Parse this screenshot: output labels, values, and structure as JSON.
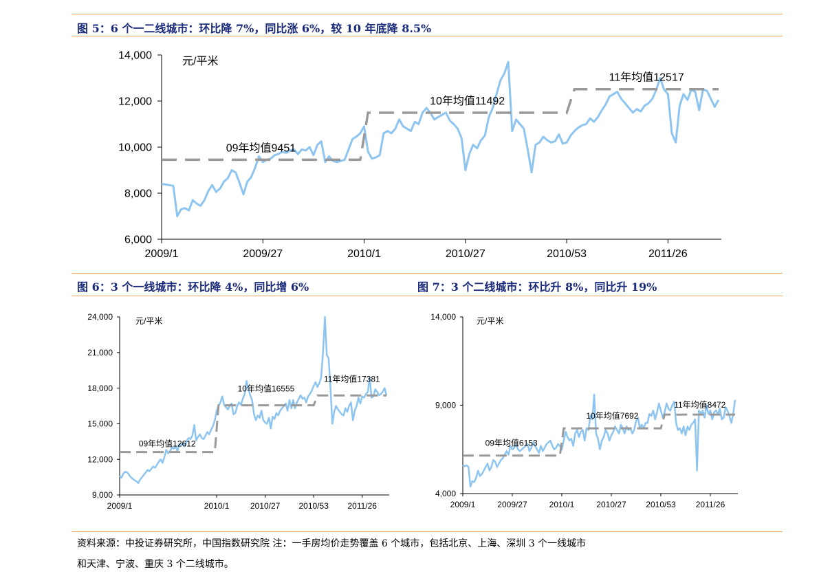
{
  "figures": {
    "fig5_title": "图 5：6 个一二线城市：环比降 7%，同比涨 6%，较 10 年底降 8.5%",
    "fig6_title": "图 6：3 个一线城市：环比降 4%，同比增 6%",
    "fig7_title": "图 7：3 个二线城市：环比升 8%，同比升 19%"
  },
  "footnote": {
    "line1": "资料来源：中投证券研究所，中国指数研究院   注：一手房均价走势覆盖 6 个城市，包括北京、上海、深圳 3 个一线城市",
    "line2": "和天津、宁波、重庆 3 个二线城市。"
  },
  "colors": {
    "series": "#8ec5f0",
    "average": "#999999",
    "rule": "#f0a35e",
    "title": "#1a2a7a"
  },
  "chart_data": [
    {
      "id": "fig5",
      "type": "line",
      "unit_label": "元/平米",
      "ylim": [
        6000,
        14000
      ],
      "yticks": [
        6000,
        8000,
        10000,
        12000,
        14000
      ],
      "ytick_labels": [
        "6,000",
        "8,000",
        "10,000",
        "12,000",
        "14,000"
      ],
      "x_tick_labels": [
        "2009/1",
        "2009/27",
        "2010/1",
        "2010/27",
        "2010/53",
        "2011/26"
      ],
      "x_tick_index": [
        0,
        26,
        52,
        78,
        104,
        130
      ],
      "n_points": 144,
      "series": {
        "values": [
          8400,
          8380,
          8350,
          8320,
          7000,
          7300,
          7350,
          7250,
          7700,
          7550,
          7450,
          7700,
          8100,
          8350,
          8050,
          8200,
          8500,
          8650,
          9000,
          8900,
          8450,
          7950,
          8500,
          8700,
          9100,
          9600,
          9350,
          9450,
          9500,
          9650,
          9700,
          9800,
          9750,
          9850,
          9900,
          9700,
          9900,
          9850,
          10000,
          9650,
          10100,
          10250,
          9350,
          9600,
          9400,
          9350,
          9400,
          9450,
          9900,
          10350,
          10450,
          10600,
          10900,
          9800,
          9500,
          9550,
          9650,
          10600,
          10700,
          10600,
          10800,
          11200,
          10900,
          10800,
          10700,
          11100,
          11000,
          11500,
          11700,
          11500,
          11200,
          11300,
          11400,
          11500,
          11150,
          11000,
          10800,
          10400,
          9000,
          9700,
          10100,
          9950,
          10300,
          10500,
          11300,
          11700,
          12300,
          12900,
          13200,
          13700,
          10700,
          11200,
          11000,
          10800,
          9900,
          8900,
          10100,
          10200,
          10450,
          10300,
          10200,
          10250,
          10550,
          10150,
          10200,
          10500,
          10700,
          10850,
          10950,
          11000,
          11250,
          11100,
          11300,
          11600,
          11850,
          12200,
          12300,
          12400,
          12100,
          11900,
          11700,
          11500,
          11650,
          11550,
          11800,
          11900,
          12100,
          12500,
          13000,
          12500,
          12300,
          10600,
          10200,
          11800,
          12300,
          12050,
          12500,
          12400,
          11600,
          12500,
          12450,
          12100,
          11750,
          12050
        ],
        "color": "#8ec5f0"
      },
      "averages": [
        {
          "label": "09年均值9451",
          "value": 9451,
          "from": 0,
          "to": 51
        },
        {
          "label": "10年均值11492",
          "value": 11492,
          "from": 53,
          "to": 104
        },
        {
          "label": "11年均值12517",
          "value": 12517,
          "from": 106,
          "to": 143
        }
      ]
    },
    {
      "id": "fig6",
      "type": "line",
      "unit_label": "元/平米",
      "ylim": [
        9000,
        24000
      ],
      "yticks": [
        9000,
        12000,
        15000,
        18000,
        21000,
        24000
      ],
      "ytick_labels": [
        "9,000",
        "12,000",
        "15,000",
        "18,000",
        "21,000",
        "24,000"
      ],
      "x_tick_labels": [
        "2009/1",
        "2010/1",
        "2010/27",
        "2010/53",
        "2011/26"
      ],
      "x_tick_index": [
        0,
        52,
        78,
        104,
        130
      ],
      "n_points": 144,
      "series": {
        "values": [
          10600,
          10450,
          10800,
          10950,
          10900,
          10700,
          10500,
          10350,
          10250,
          10150,
          10000,
          10300,
          10500,
          10700,
          10900,
          11100,
          11000,
          11200,
          11400,
          11300,
          11550,
          11800,
          12000,
          11700,
          12200,
          12800,
          12500,
          12700,
          13000,
          12900,
          13100,
          12700,
          13300,
          13200,
          13400,
          13100,
          13600,
          13800,
          13700,
          14000,
          14900,
          13600,
          13900,
          14100,
          13800,
          13700,
          14000,
          14300,
          14100,
          14500,
          14800,
          15300,
          16100,
          16500,
          16800,
          17300,
          16600,
          16400,
          16200,
          16500,
          16700,
          15800,
          15900,
          16500,
          16800,
          16600,
          17100,
          17500,
          18600,
          17900,
          17400,
          17000,
          15800,
          15300,
          15700,
          15500,
          16100,
          15300,
          15100,
          15000,
          15500,
          14600,
          15600,
          15400,
          15900,
          15700,
          16100,
          16300,
          16500,
          16700,
          16100,
          17000,
          16300,
          17000,
          16300,
          16800,
          17100,
          17400,
          17100,
          17200,
          16800,
          17300,
          17500,
          17800,
          18200,
          18500,
          18100,
          18400,
          18900,
          21000,
          24000,
          20800,
          20500,
          18000,
          15000,
          16000,
          16500,
          16200,
          16000,
          15800,
          15700,
          16300,
          16000,
          16500,
          16800,
          15300,
          16100,
          16500,
          17200,
          16700,
          17300,
          17200,
          17500,
          17700,
          18900,
          17200,
          17300,
          17900,
          17700,
          17400,
          17500,
          17700,
          18000,
          17400
        ],
        "color": "#8ec5f0"
      },
      "averages": [
        {
          "label": "09年均值12612",
          "value": 12612,
          "from": 0,
          "to": 51
        },
        {
          "label": "10年均值16555",
          "value": 16555,
          "from": 53,
          "to": 104
        },
        {
          "label": "11年均值17381",
          "value": 17381,
          "from": 106,
          "to": 143
        }
      ]
    },
    {
      "id": "fig7",
      "type": "line",
      "unit_label": "元/平米",
      "ylim": [
        4000,
        14000
      ],
      "yticks": [
        4000,
        9000,
        14000
      ],
      "ytick_labels": [
        "4,000",
        "9,000",
        "14,000"
      ],
      "x_tick_labels": [
        "2009/1",
        "2009/27",
        "2010/1",
        "2010/27",
        "2010/53",
        "2011/26"
      ],
      "x_tick_index": [
        0,
        26,
        52,
        78,
        104,
        130
      ],
      "n_points": 144,
      "series": {
        "values": [
          5600,
          5550,
          5600,
          5500,
          4400,
          4700,
          4650,
          4900,
          5300,
          5000,
          5100,
          5300,
          5500,
          5700,
          5300,
          5500,
          5900,
          5800,
          5500,
          5700,
          5900,
          6000,
          6200,
          6400,
          6200,
          6700,
          6500,
          6600,
          6800,
          6500,
          6400,
          6500,
          6600,
          6700,
          6800,
          6400,
          6600,
          6900,
          6700,
          6500,
          6300,
          6700,
          6400,
          6600,
          6800,
          6900,
          7000,
          6700,
          6500,
          6600,
          6800,
          6700,
          6500,
          7000,
          7500,
          7200,
          7000,
          7100,
          6700,
          7400,
          7600,
          7200,
          7500,
          7600,
          7000,
          7700,
          7600,
          8400,
          8200,
          9600,
          7400,
          7100,
          6500,
          7000,
          7200,
          7600,
          7400,
          7000,
          7300,
          7500,
          7800,
          7600,
          7400,
          7900,
          7700,
          7400,
          7800,
          7600,
          7700,
          7400,
          7600,
          8100,
          8300,
          7700,
          7900,
          7700,
          8000,
          8000,
          8500,
          8400,
          8700,
          8200,
          8600,
          9100,
          8700,
          8300,
          8600,
          9100,
          8800,
          8700,
          9000,
          9200,
          8000,
          7600,
          7700,
          7400,
          7800,
          7300,
          7800,
          7600,
          7900,
          8000,
          8200,
          5300,
          8700,
          8500,
          8700,
          8300,
          9000,
          8500,
          8700,
          8200,
          8600,
          8700,
          8500,
          8800,
          8200,
          8300,
          8900,
          8700,
          8400,
          8000,
          8500,
          9300
        ],
        "color": "#8ec5f0"
      },
      "averages": [
        {
          "label": "09年均值6153",
          "value": 6153,
          "from": 0,
          "to": 51
        },
        {
          "label": "10年均值7692",
          "value": 7692,
          "from": 53,
          "to": 104
        },
        {
          "label": "11年均值8472",
          "value": 8472,
          "from": 106,
          "to": 143
        }
      ]
    }
  ]
}
